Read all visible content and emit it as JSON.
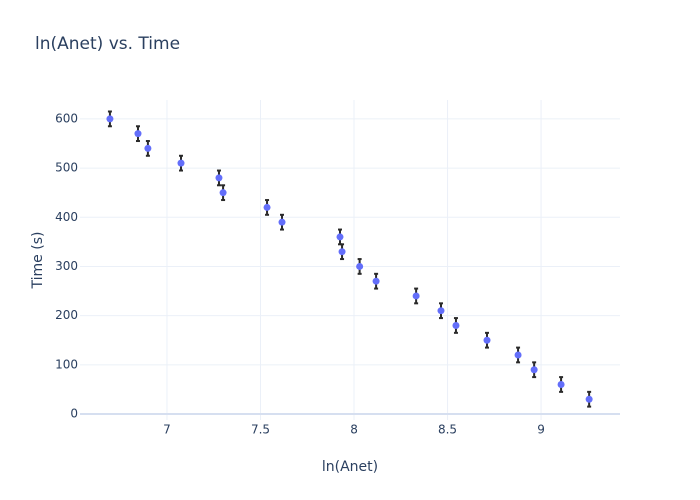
{
  "chart_data": {
    "type": "scatter",
    "title": "ln(Anet) vs. Time",
    "x_label": "ln(Anet)",
    "y_label": "Time (s)",
    "x": [
      6.695,
      6.845,
      6.898,
      7.075,
      7.278,
      7.3,
      7.535,
      7.615,
      7.925,
      7.936,
      8.03,
      8.118,
      8.332,
      8.465,
      8.545,
      8.711,
      8.877,
      8.963,
      9.107,
      9.257
    ],
    "series": [
      {
        "name": "Time",
        "color": "#636efa",
        "values": [
          600,
          570,
          540,
          510,
          480,
          450,
          420,
          390,
          360,
          330,
          300,
          270,
          240,
          210,
          180,
          150,
          120,
          90,
          60,
          30
        ],
        "errors": [
          15,
          15,
          15,
          15,
          15,
          15,
          15,
          15,
          15,
          15,
          15,
          15,
          15,
          15,
          15,
          15,
          15,
          15,
          15,
          15
        ]
      }
    ],
    "error_color": "#2a2a2a",
    "xlim": [
      6.535,
      9.422
    ],
    "ylim": [
      -12.2,
      638.4
    ],
    "xticks": [
      7,
      7.5,
      8,
      8.5,
      9
    ],
    "yticks": [
      0,
      100,
      200,
      300,
      400,
      500,
      600
    ],
    "grid": true
  }
}
